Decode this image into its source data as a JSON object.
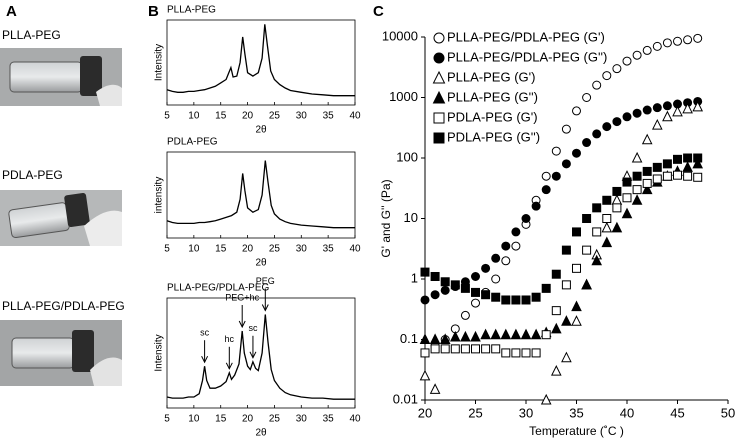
{
  "panel_labels": [
    "A",
    "B",
    "C"
  ],
  "samples": [
    "PLLA-PEG",
    "PDLA-PEG",
    "PLLA-PEG/PDLA-PEG"
  ],
  "chart_data": [
    {
      "type": "line",
      "title": "PLLA-PEG",
      "xlabel": "2θ",
      "ylabel": "Intensity",
      "color": "#000000",
      "xlim": [
        5,
        40
      ],
      "xticks": [
        5,
        10,
        15,
        20,
        25,
        30,
        35,
        40
      ],
      "ylim": [
        0,
        100
      ],
      "x": [
        5,
        6,
        7,
        8,
        9,
        10,
        11,
        12,
        13,
        14,
        15,
        16,
        16.5,
        16.9,
        17.3,
        18,
        18.6,
        19.1,
        19.5,
        20,
        21,
        22,
        22.7,
        23.2,
        23.7,
        24.3,
        25,
        26,
        27,
        28,
        30,
        32,
        34,
        36,
        38,
        40
      ],
      "values": [
        18,
        16,
        15,
        15,
        16,
        16,
        17,
        18,
        20,
        22,
        26,
        30,
        38,
        44,
        33,
        34,
        50,
        80,
        60,
        38,
        34,
        38,
        55,
        95,
        70,
        40,
        30,
        24,
        20,
        17,
        15,
        13,
        12,
        11,
        11,
        11
      ]
    },
    {
      "type": "line",
      "title": "PDLA-PEG",
      "xlabel": "2θ",
      "ylabel": "intensity",
      "color": "#000000",
      "xlim": [
        5,
        40
      ],
      "xticks": [
        5,
        10,
        15,
        20,
        25,
        30,
        35,
        40
      ],
      "ylim": [
        0,
        100
      ],
      "x": [
        5,
        6,
        7,
        8,
        9,
        10,
        11,
        12,
        13,
        14,
        15,
        16,
        17,
        18,
        18.6,
        19.1,
        19.5,
        20,
        21,
        22,
        22.7,
        23.3,
        23.8,
        24.4,
        25,
        26,
        27,
        28,
        30,
        32,
        34,
        36,
        38,
        40
      ],
      "values": [
        20,
        18,
        17,
        17,
        17,
        17,
        18,
        18,
        19,
        20,
        22,
        24,
        26,
        30,
        45,
        75,
        55,
        35,
        30,
        33,
        50,
        90,
        65,
        38,
        28,
        22,
        19,
        17,
        15,
        14,
        13,
        12,
        12,
        12
      ]
    },
    {
      "type": "line",
      "title": "PLLA-PEG/PDLA-PEG",
      "xlabel": "2θ",
      "ylabel": "Intensity",
      "color": "#000000",
      "xlim": [
        5,
        40
      ],
      "xticks": [
        5,
        10,
        15,
        20,
        25,
        30,
        35,
        40
      ],
      "ylim": [
        0,
        100
      ],
      "x": [
        5,
        6,
        7,
        8,
        9,
        10,
        11,
        11.6,
        12,
        12.4,
        13,
        14,
        15,
        16,
        16.6,
        17,
        17.6,
        18.4,
        19,
        19.4,
        20,
        20.5,
        21,
        21.5,
        22,
        22.7,
        23.3,
        23.8,
        24.4,
        25,
        26,
        27,
        28,
        30,
        32,
        34,
        36,
        38,
        40
      ],
      "values": [
        10,
        9,
        9,
        9,
        10,
        10,
        13,
        25,
        38,
        25,
        18,
        18,
        20,
        24,
        32,
        26,
        30,
        40,
        70,
        50,
        38,
        35,
        42,
        36,
        34,
        50,
        85,
        60,
        35,
        25,
        18,
        14,
        12,
        10,
        9,
        9,
        8,
        8,
        8
      ],
      "annotations": [
        {
          "text": "sc",
          "x": 12
        },
        {
          "text": "hc",
          "x": 16.6
        },
        {
          "text": "PEG+hc",
          "x": 19
        },
        {
          "text": "sc",
          "x": 21
        },
        {
          "text": "PEG",
          "x": 23.3
        }
      ]
    },
    {
      "type": "scatter",
      "xlabel": "Temperature (˚C )",
      "ylabel": "G' and G'' (Pa)",
      "yscale": "log",
      "legend": "upper left",
      "xlim": [
        20,
        50
      ],
      "xticks": [
        20,
        25,
        30,
        35,
        40,
        45,
        50
      ],
      "ylim": [
        0.01,
        10000
      ],
      "yticks": [
        0.01,
        0.1,
        1,
        10,
        100,
        1000,
        10000
      ],
      "x": [
        20,
        21,
        22,
        23,
        24,
        25,
        26,
        27,
        28,
        29,
        30,
        31,
        32,
        33,
        34,
        35,
        36,
        37,
        38,
        39,
        40,
        41,
        42,
        43,
        44,
        45,
        46,
        47
      ],
      "series": [
        {
          "name": "PLLA-PEG/PDLA-PEG (G')",
          "color": "#000000",
          "marker": "circle",
          "filled": false,
          "values": [
            0.06,
            0.08,
            0.1,
            0.15,
            0.25,
            0.4,
            0.6,
            1,
            2,
            3.5,
            8,
            20,
            50,
            130,
            300,
            600,
            1000,
            1600,
            2300,
            3000,
            4000,
            5000,
            6000,
            7000,
            8000,
            8500,
            9000,
            9500
          ]
        },
        {
          "name": "PLLA-PEG/PDLA-PEG (G'')",
          "color": "#000000",
          "marker": "circle",
          "filled": true,
          "values": [
            0.45,
            0.55,
            0.65,
            0.75,
            0.9,
            1.1,
            1.5,
            2.2,
            3.5,
            6,
            10,
            16,
            30,
            50,
            80,
            120,
            180,
            250,
            330,
            400,
            480,
            550,
            620,
            680,
            730,
            780,
            820,
            860
          ]
        },
        {
          "name": "PLLA-PEG (G')",
          "color": "#000000",
          "marker": "triangle",
          "filled": false,
          "values": [
            0.025,
            0.015,
            null,
            null,
            null,
            null,
            null,
            null,
            null,
            null,
            null,
            null,
            0.01,
            0.03,
            0.05,
            0.2,
            0.8,
            2.5,
            7,
            20,
            50,
            100,
            200,
            350,
            480,
            580,
            650,
            700
          ]
        },
        {
          "name": "PLLA-PEG (G'')",
          "color": "#000000",
          "marker": "triangle",
          "filled": true,
          "values": [
            0.1,
            0.1,
            0.1,
            0.11,
            0.11,
            0.11,
            0.12,
            0.12,
            0.12,
            0.12,
            0.12,
            0.12,
            0.13,
            0.15,
            0.2,
            0.35,
            0.8,
            2,
            4,
            7,
            12,
            20,
            30,
            40,
            50,
            60,
            70,
            80
          ]
        },
        {
          "name": "PDLA-PEG (G')",
          "color": "#000000",
          "marker": "square",
          "filled": false,
          "values": [
            0.06,
            0.07,
            0.07,
            0.07,
            0.07,
            0.07,
            0.07,
            0.07,
            0.06,
            0.06,
            0.06,
            0.06,
            0.12,
            0.3,
            0.8,
            1.5,
            3,
            6,
            10,
            15,
            22,
            30,
            38,
            45,
            50,
            52,
            50,
            48
          ]
        },
        {
          "name": "PDLA-PEG (G'')",
          "color": "#000000",
          "marker": "square",
          "filled": true,
          "values": [
            1.3,
            1.1,
            0.9,
            0.8,
            0.7,
            0.6,
            0.55,
            0.5,
            0.45,
            0.45,
            0.45,
            0.5,
            0.7,
            1.2,
            3,
            6,
            10,
            15,
            20,
            28,
            40,
            50,
            60,
            70,
            80,
            95,
            100,
            100
          ]
        }
      ]
    }
  ]
}
